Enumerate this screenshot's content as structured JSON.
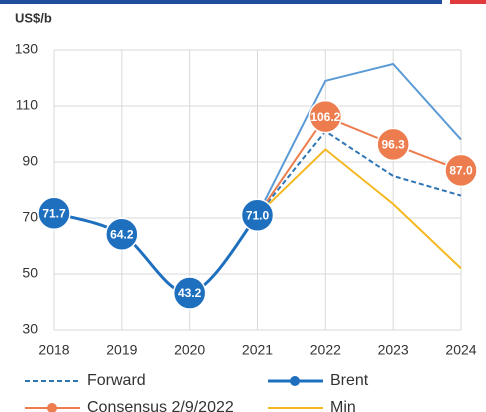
{
  "chart_data": {
    "type": "line",
    "unit_label": "US$/b",
    "categories": [
      "2018",
      "2019",
      "2020",
      "2021",
      "2022",
      "2023",
      "2024"
    ],
    "ylim": [
      30,
      130
    ],
    "yticks": [
      30,
      50,
      70,
      90,
      110,
      130
    ],
    "grid": true,
    "series": [
      {
        "color": "#5b9bd5",
        "style": "solid",
        "values": [
          null,
          null,
          null,
          71.0,
          119,
          125,
          98
        ]
      },
      {
        "name": "Min",
        "color": "#f5b820",
        "style": "solid",
        "values": [
          null,
          null,
          null,
          71.0,
          94.5,
          75,
          52
        ]
      },
      {
        "name": "Forward",
        "color": "#2e75b6",
        "style": "dashed",
        "values": [
          null,
          null,
          null,
          71.0,
          101,
          85,
          78
        ]
      },
      {
        "name": "Consensus 2/9/2022",
        "color": "#ed7d4f",
        "style": "solid",
        "values": [
          null,
          null,
          null,
          71.0,
          106.2,
          96.3,
          87.0
        ],
        "value_labels": [
          null,
          null,
          null,
          null,
          "106.2",
          "96.3",
          "87.0"
        ]
      },
      {
        "name": "Brent",
        "color": "#1f6fbf",
        "style": "solid",
        "smooth": true,
        "values": [
          71.7,
          64.2,
          43.2,
          71.0,
          null,
          null,
          null
        ],
        "value_labels": [
          "71.7",
          "64.2",
          "43.2",
          "71.0",
          null,
          null,
          null
        ]
      }
    ],
    "legend_order": [
      2,
      4,
      3,
      1
    ]
  }
}
